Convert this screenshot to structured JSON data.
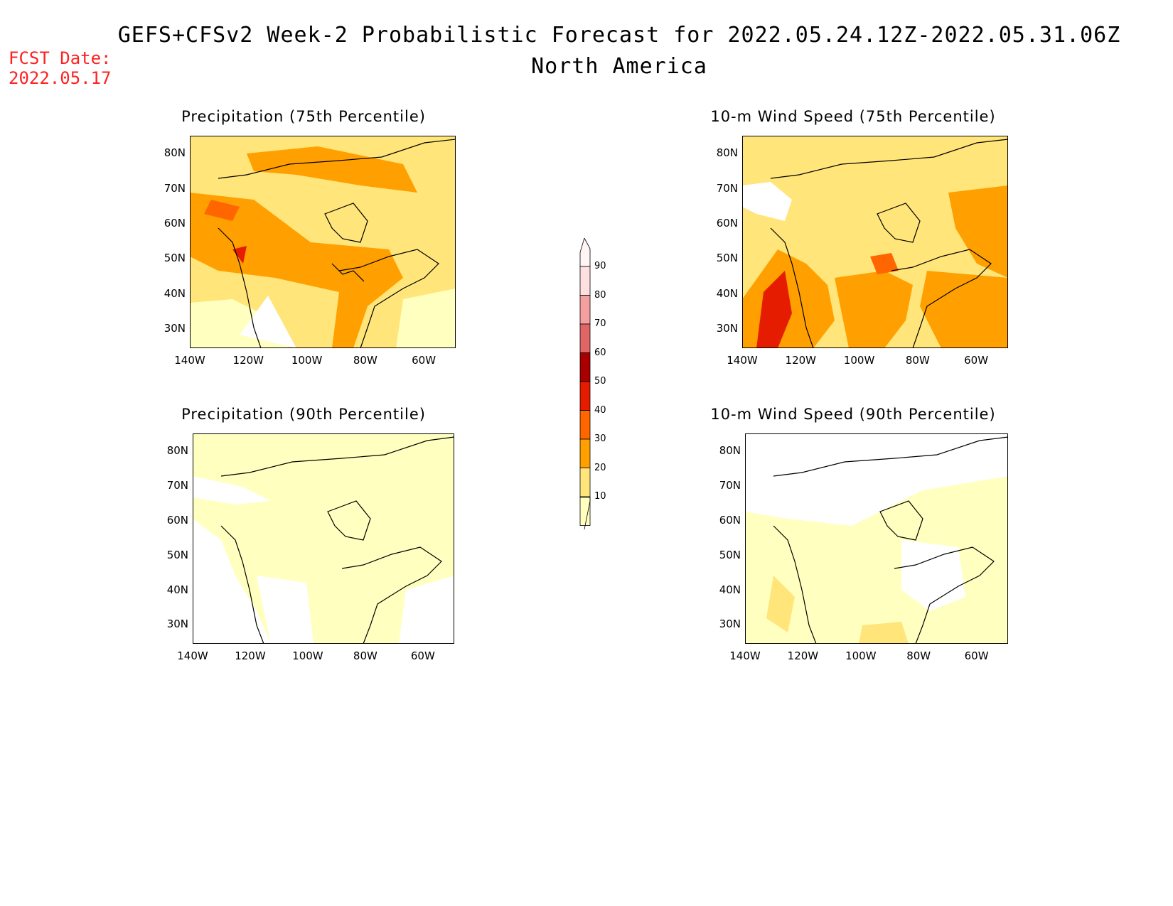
{
  "header": {
    "title_line1": "GEFS+CFSv2 Week-2 Probabilistic Forecast for 2022.05.24.12Z-2022.05.31.06Z",
    "title_line2": "North America",
    "fcst_label": "FCST Date:",
    "fcst_date": "2022.05.17"
  },
  "panels": [
    {
      "id": "p75",
      "title": "Precipitation (75th Percentile)"
    },
    {
      "id": "p90",
      "title": "Precipitation (90th Percentile)"
    },
    {
      "id": "w75",
      "title": "10-m Wind Speed (75th Percentile)"
    },
    {
      "id": "w90",
      "title": "10-m Wind Speed (90th Percentile)"
    }
  ],
  "axes": {
    "lat_ticks": [
      "80N",
      "70N",
      "60N",
      "50N",
      "40N",
      "30N"
    ],
    "lon_ticks": [
      "140W",
      "120W",
      "100W",
      "80W",
      "60W"
    ]
  },
  "colorbar": {
    "labels": [
      "90",
      "80",
      "70",
      "60",
      "50",
      "40",
      "30",
      "20",
      "10"
    ],
    "colors": {
      "c10": "#ffffc0",
      "c20": "#ffe57a",
      "c30": "#ffa000",
      "c40": "#ff6600",
      "c50": "#e61c00",
      "c60": "#a80000",
      "c70": "#e06666",
      "c80": "#f4a0a0",
      "c90": "#ffe0e0"
    }
  }
}
